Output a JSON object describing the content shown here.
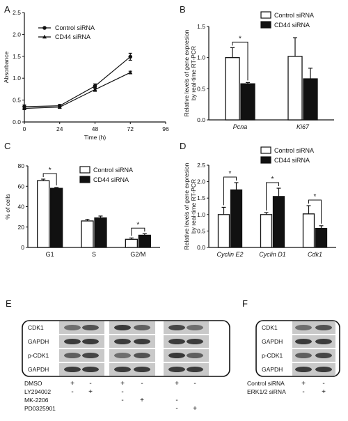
{
  "panels": {
    "A": {
      "letter": "A",
      "chart_data": {
        "type": "line",
        "xlabel": "Time (h)",
        "ylabel": "Absorbance",
        "xlim": [
          0,
          96
        ],
        "ylim": [
          0,
          2.5
        ],
        "xticks": [
          "0",
          "24",
          "48",
          "72",
          "96"
        ],
        "yticks": [
          "0.0",
          "0.5",
          "1.0",
          "1.5",
          "2.0",
          "2.5"
        ],
        "x": [
          0,
          24,
          48,
          72
        ],
        "legend": [
          "Control siRNA",
          "CD44 siRNA"
        ],
        "series": [
          {
            "name": "Control siRNA",
            "marker": "circle",
            "values": [
              0.35,
              0.37,
              0.82,
              1.49
            ],
            "errors": [
              0.04,
              0.03,
              0.05,
              0.08
            ]
          },
          {
            "name": "CD44 siRNA",
            "marker": "triangle",
            "values": [
              0.31,
              0.34,
              0.74,
              1.13
            ],
            "errors": [
              0.03,
              0.03,
              0.04,
              0.03
            ]
          }
        ]
      }
    },
    "B": {
      "letter": "B",
      "chart_data": {
        "type": "bar",
        "ylabel": "Relative levels of gene expresion\nby real-time RT-PCR",
        "ylim": [
          0,
          1.5
        ],
        "yticks": [
          "0.0",
          "0.5",
          "1.0",
          "1.5"
        ],
        "categories": [
          "Pcna",
          "Ki67"
        ],
        "legend": [
          "Control siRNA",
          "CD44 siRNA"
        ],
        "series": [
          {
            "name": "Control siRNA",
            "values": [
              1.0,
              1.02
            ],
            "errors": [
              0.16,
              0.3
            ]
          },
          {
            "name": "CD44 siRNA",
            "values": [
              0.58,
              0.66
            ],
            "errors": [
              0.02,
              0.17
            ]
          }
        ],
        "significance": [
          "*",
          ""
        ]
      }
    },
    "C": {
      "letter": "C",
      "chart_data": {
        "type": "bar",
        "ylabel": "% of cells",
        "ylim": [
          0,
          80
        ],
        "yticks": [
          "0",
          "20",
          "40",
          "60",
          "80"
        ],
        "categories": [
          "G1",
          "S",
          "G2/M"
        ],
        "legend": [
          "Control siRNA",
          "CD44 siRNA"
        ],
        "series": [
          {
            "name": "Control siRNA",
            "values": [
              65.5,
              26.0,
              8.0
            ],
            "errors": [
              1.5,
              1.5,
              1.3
            ]
          },
          {
            "name": "CD44 siRNA",
            "values": [
              58.0,
              29.0,
              12.0
            ],
            "errors": [
              0.8,
              1.8,
              1.5
            ]
          }
        ],
        "significance": [
          "*",
          "",
          "*"
        ]
      }
    },
    "D": {
      "letter": "D",
      "chart_data": {
        "type": "bar",
        "ylabel": "Relative levels of gene expresion\nby real-time RT-PCR",
        "ylim": [
          0,
          2.5
        ],
        "yticks": [
          "0.0",
          "0.5",
          "1.0",
          "1.5",
          "2.0",
          "2.5"
        ],
        "categories": [
          "Cyclin E2",
          "Cyclin D1",
          "Cdk1"
        ],
        "legend": [
          "Control siRNA",
          "CD44 siRNA"
        ],
        "series": [
          {
            "name": "Control siRNA",
            "values": [
              1.0,
              1.0,
              1.02
            ],
            "errors": [
              0.22,
              0.06,
              0.25
            ]
          },
          {
            "name": "CD44 siRNA",
            "values": [
              1.75,
              1.55,
              0.58
            ],
            "errors": [
              0.22,
              0.25,
              0.08
            ]
          }
        ],
        "significance": [
          "*",
          "*",
          "*"
        ]
      }
    },
    "E": {
      "letter": "E",
      "bands": [
        "CDK1",
        "GAPDH",
        "p-CDK1",
        "GAPDH"
      ],
      "treatments": [
        {
          "name": "DMSO",
          "signs": [
            "+",
            "-",
            "+",
            "-",
            "+",
            "-"
          ]
        },
        {
          "name": "LY294002",
          "signs": [
            "-",
            "+",
            "-",
            "",
            "",
            ""
          ]
        },
        {
          "name": "MK-2206",
          "signs": [
            "",
            "",
            "-",
            "+",
            "-",
            ""
          ]
        },
        {
          "name": "PD0325901",
          "signs": [
            "",
            "",
            "",
            "",
            "-",
            "+"
          ]
        }
      ]
    },
    "F": {
      "letter": "F",
      "bands": [
        "CDK1",
        "GAPDH",
        "p-CDK1",
        "GAPDH"
      ],
      "treatments": [
        {
          "name": "Control siRNA",
          "signs": [
            "+",
            "-"
          ]
        },
        {
          "name": "ERK1/2 siRNA",
          "signs": [
            "-",
            "+"
          ]
        }
      ]
    }
  }
}
